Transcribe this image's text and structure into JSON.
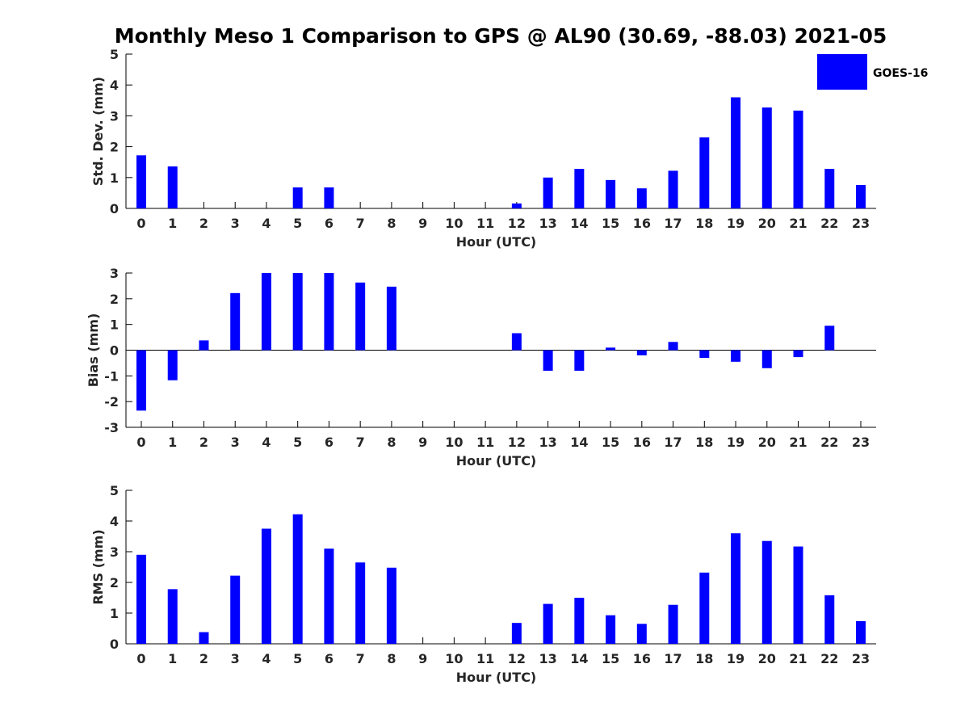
{
  "title": "Monthly Meso 1 Comparison to GPS @ AL90 (30.69, -88.03) 2021-05",
  "colors": {
    "bar": "#0000ff",
    "axis": "#000000",
    "tick_text": "#262626"
  },
  "legend": {
    "label": "GOES-16",
    "placement": "top-right"
  },
  "chart_data": [
    {
      "type": "bar",
      "categories": [
        "0",
        "1",
        "2",
        "3",
        "4",
        "5",
        "6",
        "7",
        "8",
        "9",
        "10",
        "11",
        "12",
        "13",
        "14",
        "15",
        "16",
        "17",
        "18",
        "19",
        "20",
        "21",
        "22",
        "23"
      ],
      "series": [
        {
          "name": "GOES-16",
          "values": [
            1.72,
            1.36,
            0,
            0,
            0,
            0.68,
            0.68,
            0,
            0,
            0,
            0,
            0,
            0.16,
            1.0,
            1.28,
            0.92,
            0.65,
            1.22,
            2.3,
            3.6,
            3.27,
            3.17,
            1.28,
            0.76
          ]
        }
      ],
      "xlabel": "Hour (UTC)",
      "ylabel": "Std. Dev. (mm)",
      "ylim": [
        0,
        5
      ],
      "yticks": [
        "0",
        "1",
        "2",
        "3",
        "4",
        "5"
      ],
      "grid": false
    },
    {
      "type": "bar",
      "categories": [
        "0",
        "1",
        "2",
        "3",
        "4",
        "5",
        "6",
        "7",
        "8",
        "9",
        "10",
        "11",
        "12",
        "13",
        "14",
        "15",
        "16",
        "17",
        "18",
        "19",
        "20",
        "21",
        "22",
        "23"
      ],
      "series": [
        {
          "name": "GOES-16",
          "values": [
            -2.35,
            -1.17,
            0.38,
            2.22,
            3.0,
            3.0,
            3.0,
            2.63,
            2.47,
            0,
            0,
            0,
            0.66,
            -0.8,
            -0.8,
            0.1,
            -0.2,
            0.32,
            -0.3,
            -0.45,
            -0.7,
            -0.27,
            0.95,
            0
          ]
        }
      ],
      "xlabel": "Hour (UTC)",
      "ylabel": "Bias (mm)",
      "ylim": [
        -3,
        3
      ],
      "yticks": [
        "-3",
        "-2",
        "-1",
        "0",
        "1",
        "2",
        "3"
      ],
      "grid": false
    },
    {
      "type": "bar",
      "categories": [
        "0",
        "1",
        "2",
        "3",
        "4",
        "5",
        "6",
        "7",
        "8",
        "9",
        "10",
        "11",
        "12",
        "13",
        "14",
        "15",
        "16",
        "17",
        "18",
        "19",
        "20",
        "21",
        "22",
        "23"
      ],
      "series": [
        {
          "name": "GOES-16",
          "values": [
            2.9,
            1.78,
            0.38,
            2.22,
            3.75,
            4.22,
            3.1,
            2.65,
            2.48,
            0,
            0,
            0,
            0.68,
            1.3,
            1.5,
            0.93,
            0.65,
            1.27,
            2.32,
            3.6,
            3.35,
            3.17,
            1.58,
            0.74
          ]
        }
      ],
      "xlabel": "Hour (UTC)",
      "ylabel": "RMS (mm)",
      "ylim": [
        0,
        5
      ],
      "yticks": [
        "0",
        "1",
        "2",
        "3",
        "4",
        "5"
      ],
      "grid": false
    }
  ]
}
